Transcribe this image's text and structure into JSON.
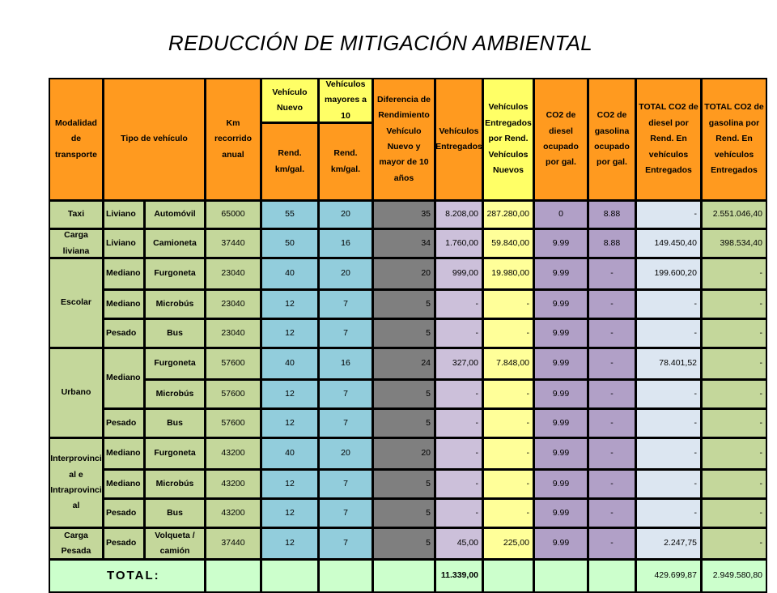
{
  "title": "REDUCCIÓN DE MITIGACIÓN AMBIENTAL",
  "headers": {
    "modalidad": "Modalidad de transporte",
    "tipo": "Tipo de vehículo",
    "km": "Km recorrido anual",
    "vnuevo": "Vehículo Nuevo",
    "vmayores": "Vehículos mayores a 10",
    "rend_nuevo": "Rend. km/gal.",
    "rend_mayor": "Rend. km/gal.",
    "diferencia": "Diferencia de Rendimiento Vehículo Nuevo y mayor de 10 años",
    "entregados": "Vehículos Entregados",
    "entregados_rend": "Vehículos Entregados por Rend. Vehículos Nuevos",
    "co2_diesel": "CO2 de diesel ocupado por gal.",
    "co2_gasolina": "CO2 de gasolina ocupado por gal.",
    "total_diesel": "TOTAL CO2 de diesel por Rend. En vehículos Entregados",
    "total_gasolina": "TOTAL CO2 de gasolina por Rend. En vehículos Entregados"
  },
  "groups": {
    "taxi": "Taxi",
    "carga_liviana": "Carga liviana",
    "escolar": "Escolar",
    "urbano": "Urbano",
    "interprov": "Interprovinci al e Intraprovinci al",
    "carga_pesada": "Carga Pesada"
  },
  "rows": [
    {
      "cat": "Liviano",
      "veh": "Automóvil",
      "km": "65000",
      "rn": "55",
      "rm": "20",
      "dif": "35",
      "ent": "8.208,00",
      "entr": "287.280,00",
      "co2d": "0",
      "co2g": "8.88",
      "td": "-",
      "tg": "2.551.046,40"
    },
    {
      "cat": "Liviano",
      "veh": "Camioneta",
      "km": "37440",
      "rn": "50",
      "rm": "16",
      "dif": "34",
      "ent": "1.760,00",
      "entr": "59.840,00",
      "co2d": "9.99",
      "co2g": "8.88",
      "td": "149.450,40",
      "tg": "398.534,40"
    },
    {
      "cat": "Mediano",
      "veh": "Furgoneta",
      "km": "23040",
      "rn": "40",
      "rm": "20",
      "dif": "20",
      "ent": "999,00",
      "entr": "19.980,00",
      "co2d": "9.99",
      "co2g": "-",
      "td": "199.600,20",
      "tg": "-"
    },
    {
      "cat": "Mediano",
      "veh": "Microbús",
      "km": "23040",
      "rn": "12",
      "rm": "7",
      "dif": "5",
      "ent": "-",
      "entr": "-",
      "co2d": "9.99",
      "co2g": "-",
      "td": "-",
      "tg": "-"
    },
    {
      "cat": "Pesado",
      "veh": "Bus",
      "km": "23040",
      "rn": "12",
      "rm": "7",
      "dif": "5",
      "ent": "-",
      "entr": "-",
      "co2d": "9.99",
      "co2g": "-",
      "td": "-",
      "tg": "-"
    },
    {
      "cat": "Mediano",
      "veh": "Furgoneta",
      "km": "57600",
      "rn": "40",
      "rm": "16",
      "dif": "24",
      "ent": "327,00",
      "entr": "7.848,00",
      "co2d": "9.99",
      "co2g": "-",
      "td": "78.401,52",
      "tg": "-"
    },
    {
      "cat": "",
      "veh": "Microbús",
      "km": "57600",
      "rn": "12",
      "rm": "7",
      "dif": "5",
      "ent": "-",
      "entr": "-",
      "co2d": "9.99",
      "co2g": "-",
      "td": "-",
      "tg": "-"
    },
    {
      "cat": "Pesado",
      "veh": "Bus",
      "km": "57600",
      "rn": "12",
      "rm": "7",
      "dif": "5",
      "ent": "-",
      "entr": "-",
      "co2d": "9.99",
      "co2g": "-",
      "td": "-",
      "tg": "-"
    },
    {
      "cat": "Mediano",
      "veh": "Furgoneta",
      "km": "43200",
      "rn": "40",
      "rm": "20",
      "dif": "20",
      "ent": "-",
      "entr": "-",
      "co2d": "9.99",
      "co2g": "-",
      "td": "-",
      "tg": "-"
    },
    {
      "cat": "Mediano",
      "veh": "Microbús",
      "km": "43200",
      "rn": "12",
      "rm": "7",
      "dif": "5",
      "ent": "-",
      "entr": "-",
      "co2d": "9.99",
      "co2g": "-",
      "td": "-",
      "tg": "-"
    },
    {
      "cat": "Pesado",
      "veh": "Bus",
      "km": "43200",
      "rn": "12",
      "rm": "7",
      "dif": "5",
      "ent": "-",
      "entr": "-",
      "co2d": "9.99",
      "co2g": "-",
      "td": "-",
      "tg": "-"
    },
    {
      "cat": "Pesado",
      "veh": "Volqueta / camión",
      "km": "37440",
      "rn": "12",
      "rm": "7",
      "dif": "5",
      "ent": "45,00",
      "entr": "225,00",
      "co2d": "9.99",
      "co2g": "-",
      "td": "2.247,75",
      "tg": "-"
    }
  ],
  "total": {
    "label": "TOTAL:",
    "entregados": "11.339,00",
    "total_diesel": "429.699,87",
    "total_gasolina": "2.949.580,80"
  }
}
